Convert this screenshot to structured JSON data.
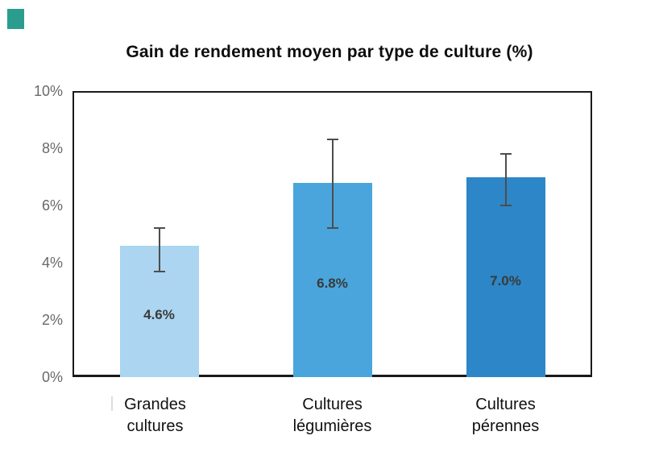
{
  "page": {
    "background": "#ffffff"
  },
  "corner_marker": {
    "color": "#2a9d8f"
  },
  "chart_data": {
    "type": "bar",
    "title": "Gain de rendement moyen par type de culture (%)",
    "categories": [
      "Grandes\ncultures",
      "Cultures\nlégumières",
      "Cultures\npérennes"
    ],
    "values": [
      4.6,
      6.8,
      7.0
    ],
    "value_labels": [
      "4.6%",
      "6.8%",
      "7.0%"
    ],
    "bar_colors": [
      "#abd5f0",
      "#4aa5dc",
      "#2d86c7"
    ],
    "error_bars": [
      {
        "low": 3.7,
        "high": 5.2
      },
      {
        "low": 5.2,
        "high": 8.3
      },
      {
        "low": 6.0,
        "high": 7.8
      }
    ],
    "xlabel": "",
    "ylabel": "",
    "ylim": [
      0,
      10
    ],
    "y_ticks": [
      {
        "value": 0,
        "label": "0%"
      },
      {
        "value": 2,
        "label": "2%"
      },
      {
        "value": 4,
        "label": "4%"
      },
      {
        "value": 6,
        "label": "6%"
      },
      {
        "value": 8,
        "label": "8%"
      },
      {
        "value": 10,
        "label": "10%"
      }
    ],
    "grid": false,
    "legend": false,
    "colors": {
      "error_bar": "#4d4d4d",
      "tick_label": "#696969",
      "value_label": "#3a3a3a",
      "axis_frame": "#1a1a1a",
      "title": "#0d0d0d",
      "category_label": "#111111"
    }
  }
}
